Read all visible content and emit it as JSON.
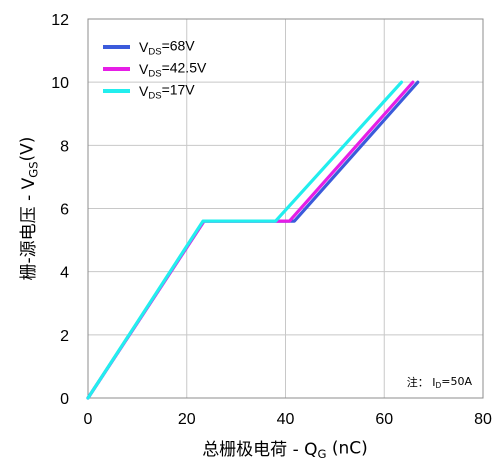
{
  "chart_data": {
    "type": "line",
    "title": "",
    "xlabel": {
      "prefix": "总栅极电荷 - Q",
      "sub": "G",
      "suffix": " (nC)"
    },
    "ylabel": {
      "prefix": "栅-源电压 - V",
      "sub": "GS",
      "suffix": "(V)"
    },
    "xlim": [
      0,
      80
    ],
    "ylim": [
      0,
      12
    ],
    "xticks": [
      0,
      20,
      40,
      60,
      80
    ],
    "yticks": [
      0,
      2,
      4,
      6,
      8,
      10,
      12
    ],
    "grid": true,
    "legend_position": "top-left",
    "annotation": {
      "prefix": "注：  I",
      "sub": "D",
      "suffix": "=50A"
    },
    "series": [
      {
        "name": {
          "prefix": "V",
          "sub": "DS",
          "suffix": "=68V"
        },
        "color": "#3b5bdb",
        "x": [
          0,
          23.5,
          41.8,
          66.8
        ],
        "y": [
          0,
          5.6,
          5.6,
          10
        ]
      },
      {
        "name": {
          "prefix": "V",
          "sub": "DS",
          "suffix": "=42.5V"
        },
        "color": "#e61ee6",
        "x": [
          0,
          23.5,
          40.8,
          65.8
        ],
        "y": [
          0,
          5.6,
          5.6,
          10
        ]
      },
      {
        "name": {
          "prefix": "V",
          "sub": "DS",
          "suffix": "=17V"
        },
        "color": "#22eeee",
        "x": [
          0,
          23.3,
          38.0,
          63.5
        ],
        "y": [
          0,
          5.6,
          5.6,
          10
        ]
      }
    ]
  }
}
